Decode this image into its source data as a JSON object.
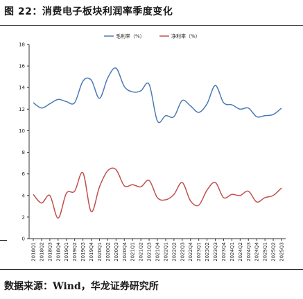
{
  "figure": {
    "title": "图 22：消费电子板块利润率季度变化",
    "source": "数据来源：Wind，华龙证券研究所"
  },
  "chart_data": {
    "type": "line",
    "title": "",
    "xlabel": "",
    "ylabel": "",
    "ylim": [
      0,
      18
    ],
    "y_ticks": [
      0,
      2,
      4,
      6,
      8,
      10,
      12,
      14,
      16,
      18
    ],
    "grid": false,
    "legend_position": "top-center",
    "categories": [
      "2018Q1",
      "2018Q2",
      "2018Q3",
      "2018Q4",
      "2019Q1",
      "2019Q2",
      "2019Q3",
      "2019Q4",
      "2020Q1",
      "2020Q2",
      "2020Q3",
      "2020Q4",
      "2021Q1",
      "2021Q2",
      "2021Q3",
      "2021Q4",
      "2022Q1",
      "2022Q2",
      "2022Q3",
      "2022Q4",
      "2023Q1",
      "2023Q2",
      "2023Q3",
      "2023Q4",
      "2024Q1",
      "2024Q2",
      "2024Q3",
      "2024Q4",
      "2025Q1",
      "2025Q2",
      "2025Q3"
    ],
    "series": [
      {
        "name": "毛利率（%）",
        "color": "#4a7ab5",
        "values": [
          12.6,
          12.1,
          12.5,
          12.9,
          12.7,
          12.6,
          14.6,
          14.7,
          13.0,
          14.9,
          15.8,
          14.1,
          13.6,
          13.7,
          14.3,
          10.9,
          11.4,
          11.3,
          12.8,
          12.3,
          11.7,
          12.5,
          14.2,
          12.6,
          12.4,
          12.0,
          12.1,
          11.3,
          11.4,
          11.5,
          12.1
        ]
      },
      {
        "name": "净利率（%）",
        "color": "#c0504d",
        "values": [
          4.1,
          3.3,
          4.0,
          1.9,
          4.2,
          4.4,
          6.1,
          2.5,
          4.8,
          6.3,
          6.4,
          4.9,
          5.0,
          4.8,
          5.4,
          3.8,
          3.6,
          4.1,
          5.2,
          3.5,
          3.1,
          4.5,
          5.2,
          3.8,
          4.1,
          4.0,
          4.4,
          3.4,
          3.8,
          4.0,
          4.7
        ]
      }
    ]
  }
}
